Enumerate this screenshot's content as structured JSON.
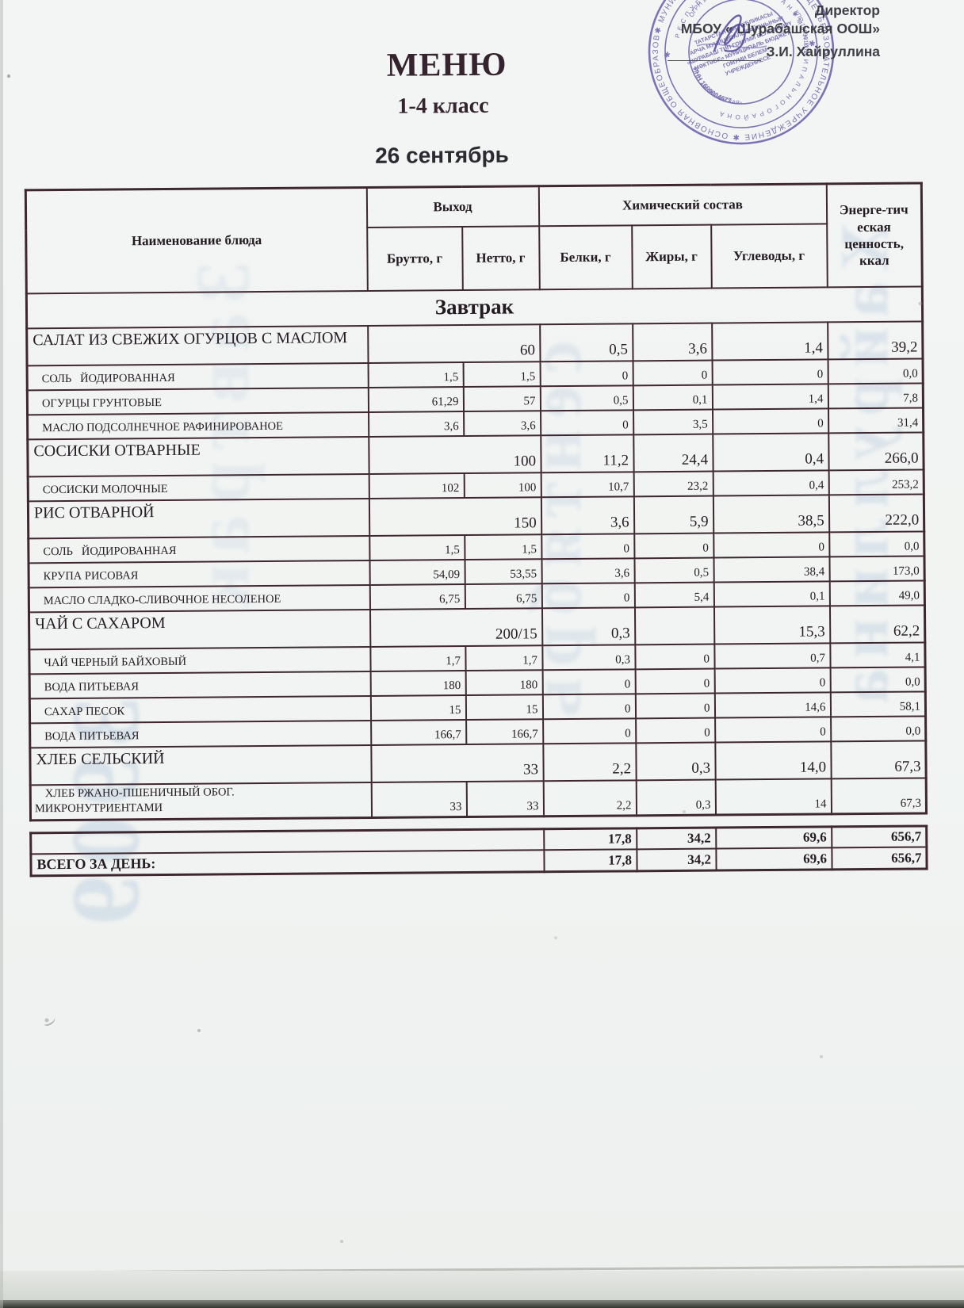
{
  "page": {
    "title": "МЕНЮ",
    "subtitle": "1-4 класс",
    "date": "26 сентябрь",
    "approval": {
      "role": "Директор",
      "org": "МБОУ « Шурабашская ООШ»",
      "signer": "З.И. Хайруллина"
    },
    "stamp": {
      "outer_ring": "✱ МУНИЦИПАЛЬНОЕ БЮДЖЕТНОЕ ОБЩЕОБРАЗОВАТЕЛЬНОЕ УЧРЕЖДЕНИЕ ✱ ОСНОВНАЯ ОБЩЕОБРАЗОВАТЕЛЬНАЯ",
      "middle_ring": "Р Е С П У Б Л И К И   Т А Т А Р С Т А Н   ✱   М У Н И Ц И П А Л Ь Н О Г О   Р А Й О Н А",
      "ogrn": "ОГРН 102",
      "inn": "ИНН 1609004677",
      "kpp": "КПП 160901001",
      "school": "«ШУРАБАШСКАЯ»",
      "center_lines": {
        "l1": "ТАТАРСТАН РЕСПУБЛИКАСЫ",
        "l2": "АРЧА МУНИЦИПАЛЬ РАЙОНЫНЫҢ",
        "l3": "«ШУРАБАШ ТИП ГОМУМИ БЕЛЕМ БИРҮ",
        "l4": "МӘКТӘБЕ» МУНИЦИПАЛЬ БЮДЖЕТ",
        "l5": "ГОМУМИ БЕЛЕМ",
        "l6": "УЧРЕЖДЕНИЕСЕ"
      }
    },
    "bleedthrough": {
      "g1": "3909",
      "g2": "Завтрак",
      "g3": "сентябрь",
      "g4": "Хайруллина"
    }
  },
  "table": {
    "header": {
      "name": "Наименование блюда",
      "output": "Выход",
      "brutto": "Брутто, г",
      "netto": "Нетто, г",
      "chem": "Химический состав",
      "belki": "Белки, г",
      "zhiry": "Жиры, г",
      "uglevody": "Углеводы, г",
      "energy": "Энерге-тич еская ценность, ккал"
    },
    "rows": [
      {
        "type": "section",
        "name": "Завтрак"
      },
      {
        "type": "dish",
        "name": "САЛАТ ИЗ СВЕЖИХ ОГУРЦОВ С МАСЛОМ",
        "netto": "60",
        "belki": "0,5",
        "zhiry": "3,6",
        "uglevody": "1,4",
        "kkal": "39,2"
      },
      {
        "type": "ingredient",
        "name": "СОЛЬ   ЙОДИРОВАННАЯ",
        "brutto": "1,5",
        "netto": "1,5",
        "belki": "0",
        "zhiry": "0",
        "uglevody": "0",
        "kkal": "0,0"
      },
      {
        "type": "ingredient",
        "name": "ОГУРЦЫ ГРУНТОВЫЕ",
        "brutto": "61,29",
        "netto": "57",
        "belki": "0,5",
        "zhiry": "0,1",
        "uglevody": "1,4",
        "kkal": "7,8"
      },
      {
        "type": "ingredient",
        "name": "МАСЛО ПОДСОЛНЕЧНОЕ РАФИНИРОВАНОЕ",
        "brutto": "3,6",
        "netto": "3,6",
        "belki": "0",
        "zhiry": "3,5",
        "uglevody": "0",
        "kkal": "31,4"
      },
      {
        "type": "dish",
        "name": "СОСИСКИ ОТВАРНЫЕ",
        "netto": "100",
        "belki": "11,2",
        "zhiry": "24,4",
        "uglevody": "0,4",
        "kkal": "266,0"
      },
      {
        "type": "ingredient",
        "name": "СОСИСКИ МОЛОЧНЫЕ",
        "brutto": "102",
        "netto": "100",
        "belki": "10,7",
        "zhiry": "23,2",
        "uglevody": "0,4",
        "kkal": "253,2"
      },
      {
        "type": "dish",
        "name": "РИС ОТВАРНОЙ",
        "netto": "150",
        "belki": "3,6",
        "zhiry": "5,9",
        "uglevody": "38,5",
        "kkal": "222,0"
      },
      {
        "type": "ingredient",
        "name": "СОЛЬ   ЙОДИРОВАННАЯ",
        "brutto": "1,5",
        "netto": "1,5",
        "belki": "0",
        "zhiry": "0",
        "uglevody": "0",
        "kkal": "0,0"
      },
      {
        "type": "ingredient",
        "name": "КРУПА РИСОВАЯ",
        "brutto": "54,09",
        "netto": "53,55",
        "belki": "3,6",
        "zhiry": "0,5",
        "uglevody": "38,4",
        "kkal": "173,0"
      },
      {
        "type": "ingredient",
        "name": "МАСЛО СЛАДКО-СЛИВОЧНОЕ НЕСОЛЕНОЕ",
        "brutto": "6,75",
        "netto": "6,75",
        "belki": "0",
        "zhiry": "5,4",
        "uglevody": "0,1",
        "kkal": "49,0"
      },
      {
        "type": "dish",
        "name": "ЧАЙ С САХАРОМ",
        "netto": "200/15",
        "belki": "0,3",
        "zhiry": "",
        "uglevody": "15,3",
        "kkal": "62,2"
      },
      {
        "type": "ingredient",
        "name": "ЧАЙ ЧЕРНЫЙ БАЙХОВЫЙ",
        "brutto": "1,7",
        "netto": "1,7",
        "belki": "0,3",
        "zhiry": "0",
        "uglevody": "0,7",
        "kkal": "4,1"
      },
      {
        "type": "ingredient",
        "name": "ВОДА ПИТЬЕВАЯ",
        "brutto": "180",
        "netto": "180",
        "belki": "0",
        "zhiry": "0",
        "uglevody": "0",
        "kkal": "0,0"
      },
      {
        "type": "ingredient",
        "name": "САХАР ПЕСОК",
        "brutto": "15",
        "netto": "15",
        "belki": "0",
        "zhiry": "0",
        "uglevody": "14,6",
        "kkal": "58,1"
      },
      {
        "type": "ingredient",
        "name": "ВОДА ПИТЬЕВАЯ",
        "brutto": "166,7",
        "netto": "166,7",
        "belki": "0",
        "zhiry": "0",
        "uglevody": "0",
        "kkal": "0,0"
      },
      {
        "type": "dish",
        "name": "ХЛЕБ СЕЛЬСКИЙ",
        "netto": "33",
        "belki": "2,2",
        "zhiry": "0,3",
        "uglevody": "14,0",
        "kkal": "67,3"
      },
      {
        "type": "ingredient",
        "name": "ХЛЕБ РЖАНО-ПШЕНИЧНЫЙ ОБОГ.\nМИКРОНУТРИЕНТАМИ",
        "brutto": "33",
        "netto": "33",
        "belki": "2,2",
        "zhiry": "0,3",
        "uglevody": "14",
        "kkal": "67,3"
      }
    ],
    "totals": {
      "label": "ВСЕГО ЗА ДЕНЬ:",
      "rows": [
        {
          "belki": "17,8",
          "zhiry": "34,2",
          "uglevody": "69,6",
          "kkal": "656,7"
        },
        {
          "belki": "17,8",
          "zhiry": "34,2",
          "uglevody": "69,6",
          "kkal": "656,7"
        }
      ]
    }
  },
  "colors": {
    "stamp": "#6c60ad",
    "table_border": "#3e2730",
    "ink": "#261d24",
    "bleed": "#c9d7e8"
  }
}
